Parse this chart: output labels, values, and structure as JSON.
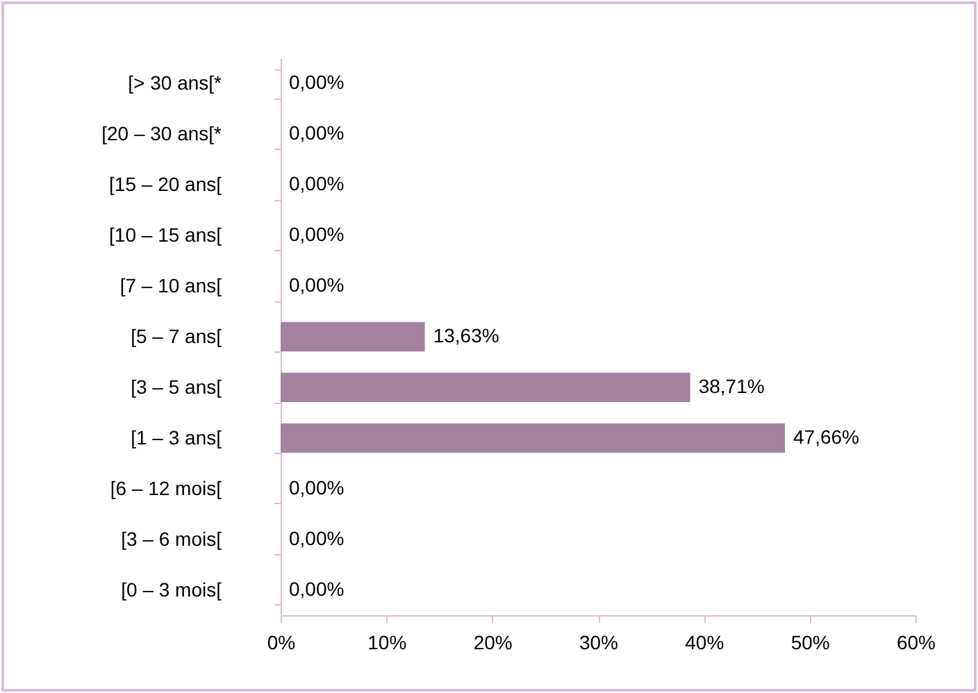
{
  "chart_data": {
    "type": "bar",
    "orientation": "horizontal",
    "categories": [
      "[> 30 ans[*",
      "[20 – 30 ans[*",
      "[15 – 20 ans[",
      "[10 – 15 ans[",
      "[7 – 10 ans[",
      "[5 – 7 ans[",
      "[3 – 5 ans[",
      "[1 – 3 ans[",
      "[6 – 12 mois[",
      "[3 – 6 mois[",
      "[0 – 3 mois["
    ],
    "values": [
      0,
      0,
      0,
      0,
      0,
      13.63,
      38.71,
      47.66,
      0,
      0,
      0
    ],
    "value_labels": [
      "0,00%",
      "0,00%",
      "0,00%",
      "0,00%",
      "0,00%",
      "13,63%",
      "38,71%",
      "47,66%",
      "0,00%",
      "0,00%",
      "0,00%"
    ],
    "color": "#a4819f",
    "xlim": [
      0,
      60
    ],
    "xticks": [
      {
        "value": 0,
        "label": "0%"
      },
      {
        "value": 10,
        "label": "10%"
      },
      {
        "value": 20,
        "label": "20%"
      },
      {
        "value": 30,
        "label": "30%"
      },
      {
        "value": 40,
        "label": "40%"
      },
      {
        "value": 50,
        "label": "50%"
      },
      {
        "value": 60,
        "label": "60%"
      }
    ],
    "grid": false
  }
}
